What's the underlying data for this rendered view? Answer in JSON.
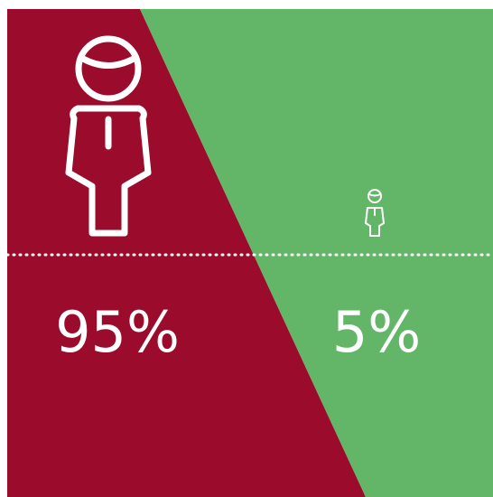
{
  "chart_data": {
    "type": "pie",
    "title": "",
    "categories": [
      "left",
      "right"
    ],
    "values": [
      95,
      5
    ],
    "labels": [
      "95%",
      "5%"
    ],
    "colors": [
      "#9b0b2b",
      "#63b668"
    ],
    "icon_names": [
      "person-icon-large",
      "person-icon-small"
    ]
  }
}
